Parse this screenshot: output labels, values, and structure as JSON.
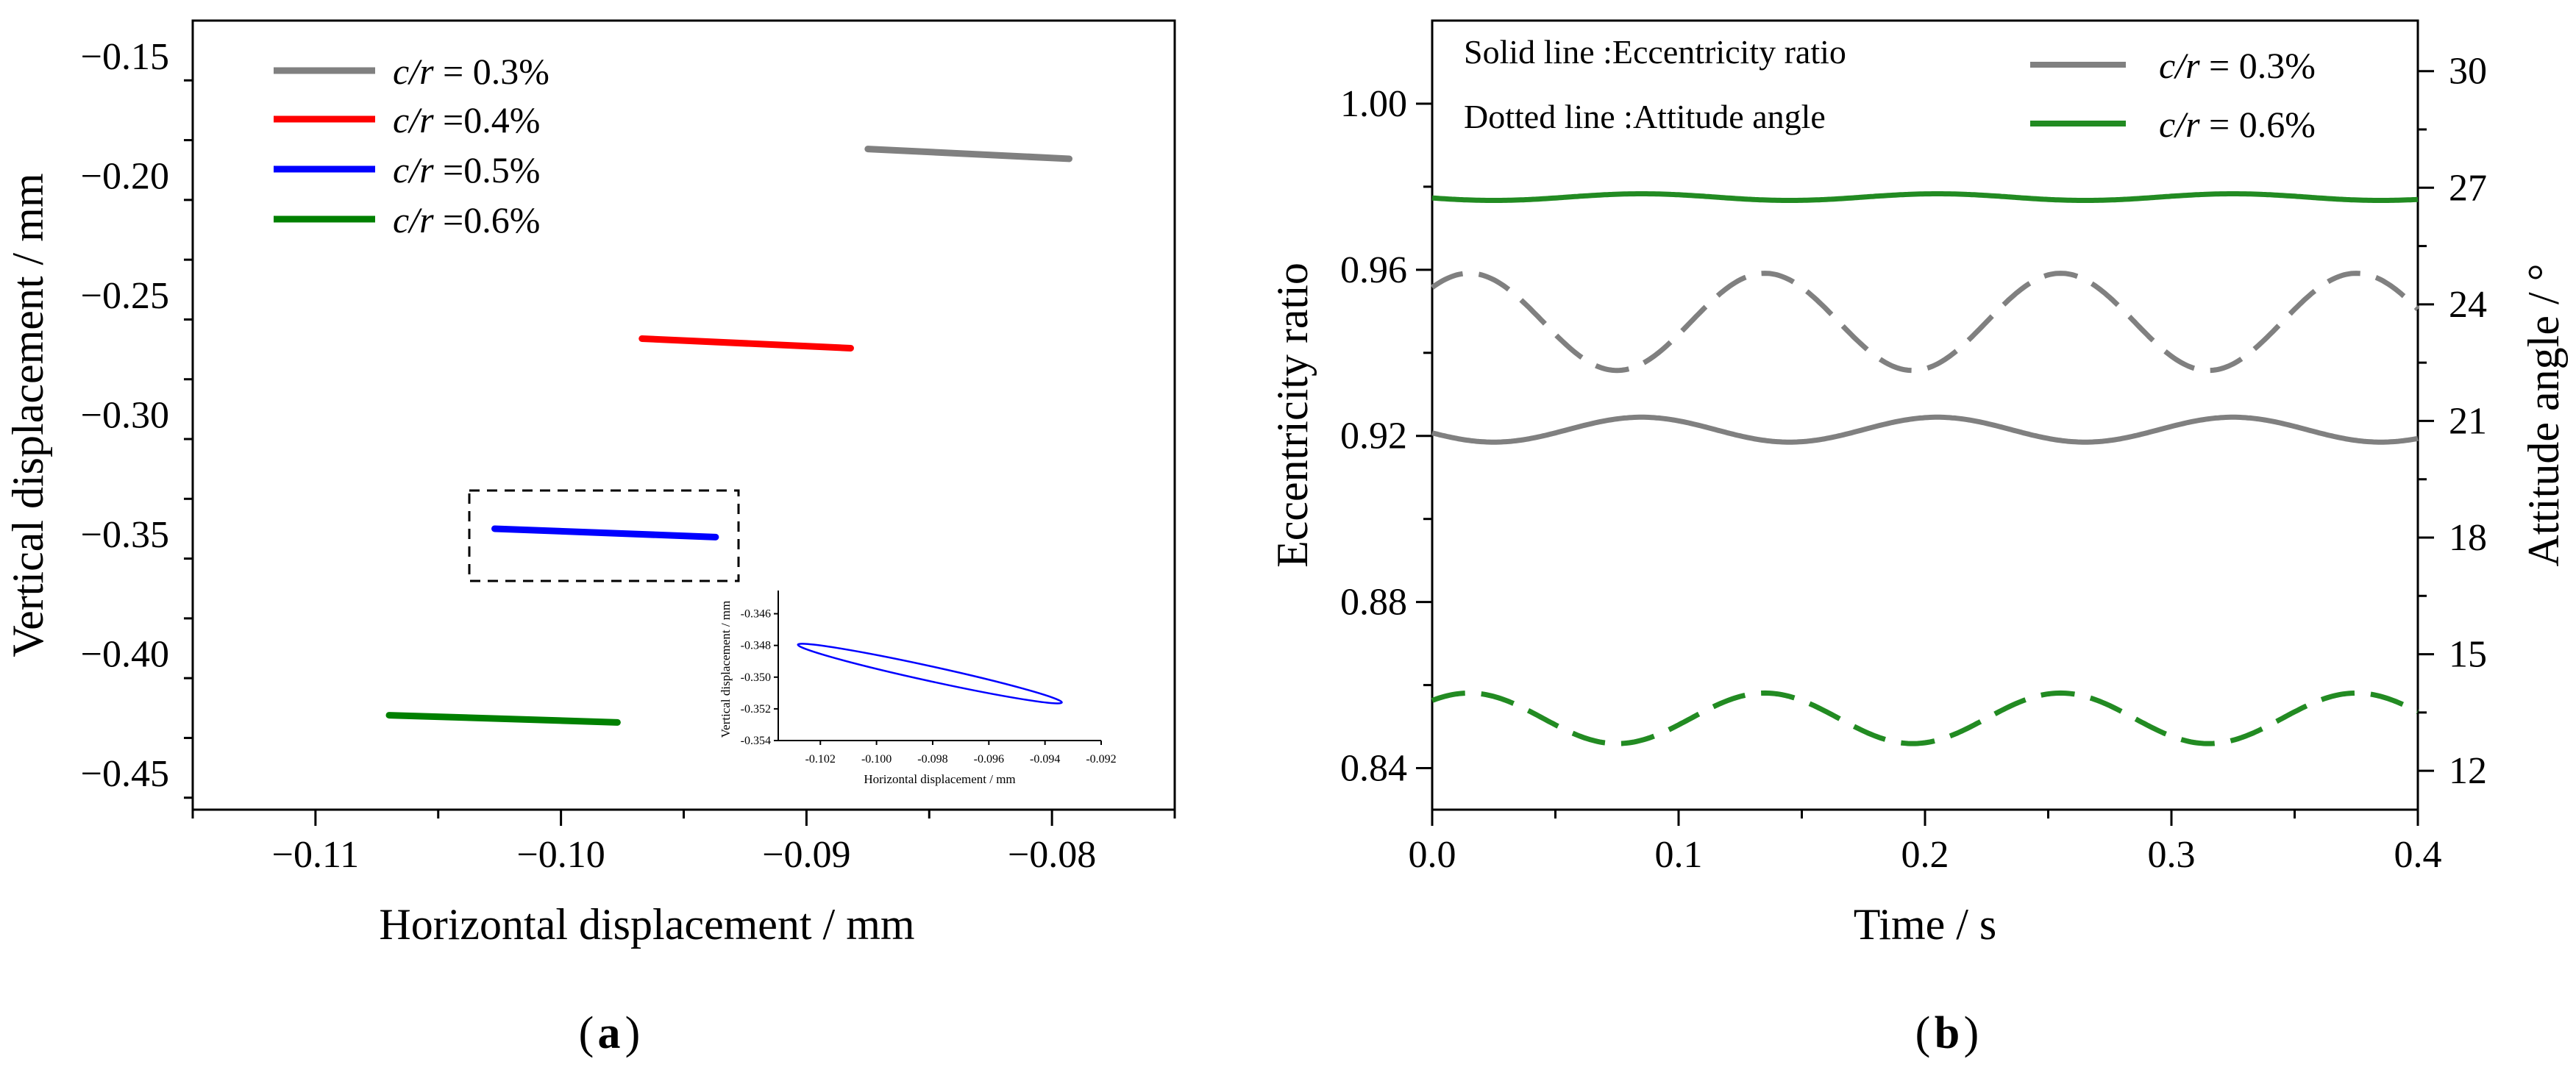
{
  "chart_data": [
    {
      "panel": "a",
      "panel_label": "a",
      "type": "line",
      "xlabel": "Horizontal displacement / mm",
      "ylabel": "Vertical displacement / mm",
      "xlim": [
        -0.115,
        -0.075
      ],
      "ylim": [
        -0.465,
        -0.135
      ],
      "xticks": [
        -0.11,
        -0.1,
        -0.09,
        -0.08
      ],
      "xtick_labels": [
        "−0.11",
        "−0.10",
        "−0.09",
        "−0.08"
      ],
      "yticks": [
        -0.15,
        -0.2,
        -0.25,
        -0.3,
        -0.35,
        -0.4,
        -0.45
      ],
      "ytick_labels": [
        "−0.15",
        "−0.20",
        "−0.25",
        "−0.30",
        "−0.35",
        "−0.40",
        "−0.45"
      ],
      "legend_position": "top-left",
      "series": [
        {
          "name": "c/r = 0.3%",
          "legend_var": "c/r",
          "legend_val": "= 0.3%",
          "color": "#808080",
          "points": [
            [
              -0.0875,
              -0.1887
            ],
            [
              -0.0793,
              -0.1928
            ]
          ]
        },
        {
          "name": "c/r =0.4%",
          "legend_var": "c/r",
          "legend_val": "=0.4%",
          "color": "#ff0000",
          "points": [
            [
              -0.0967,
              -0.268
            ],
            [
              -0.0882,
              -0.272
            ]
          ]
        },
        {
          "name": "c/r =0.5%",
          "legend_var": "c/r",
          "legend_val": "=0.5%",
          "color": "#0000ff",
          "points": [
            [
              -0.1027,
              -0.3475
            ],
            [
              -0.0937,
              -0.351
            ]
          ]
        },
        {
          "name": "c/r =0.6%",
          "legend_var": "c/r",
          "legend_val": "=0.6%",
          "color": "#008000",
          "points": [
            [
              -0.107,
              -0.4255
            ],
            [
              -0.0977,
              -0.4285
            ]
          ]
        }
      ],
      "inset": {
        "type": "line",
        "xlabel": "Horizontal displacement / mm",
        "ylabel": "Vertical displacement / mm",
        "xlim": [
          -0.1035,
          -0.092
        ],
        "ylim": [
          -0.354,
          -0.345
        ],
        "xticks": [
          -0.102,
          -0.1,
          -0.098,
          -0.096,
          -0.094,
          -0.092
        ],
        "xtick_labels": [
          "-0.102",
          "-0.100",
          "-0.098",
          "-0.096",
          "-0.094",
          "-0.092"
        ],
        "yticks": [
          -0.346,
          -0.348,
          -0.35,
          -0.352,
          -0.354
        ],
        "ytick_labels": [
          "-0.346",
          "-0.348",
          "-0.350",
          "-0.352",
          "-0.354"
        ],
        "series": [
          {
            "name": "c/r =0.5% orbit",
            "color": "#0000ff",
            "ellipse": {
              "p1": [
                -0.1028,
                -0.34795
              ],
              "p2": [
                -0.0934,
                -0.3516
              ],
              "minor_half_width": 0.00028
            }
          }
        ]
      }
    },
    {
      "panel": "b",
      "panel_label": "b",
      "type": "line",
      "xlabel": "Time / s",
      "ylabel": "Eccentricity ratio",
      "y2label": "Attitude angle / °",
      "xlim": [
        0,
        0.4
      ],
      "ylim": [
        0.83,
        1.02
      ],
      "y2lim": [
        11.0,
        31.3
      ],
      "xticks": [
        0,
        0.1,
        0.2,
        0.3,
        0.4
      ],
      "xtick_labels": [
        "0.0",
        "0.1",
        "0.2",
        "0.3",
        "0.4"
      ],
      "yticks": [
        0.84,
        0.88,
        0.92,
        0.96,
        1.0
      ],
      "ytick_labels": [
        "0.84",
        "0.88",
        "0.92",
        "0.96",
        "1.00"
      ],
      "y2ticks": [
        12,
        15,
        18,
        21,
        24,
        27,
        30
      ],
      "y2tick_labels": [
        "12",
        "15",
        "18",
        "21",
        "24",
        "27",
        "30"
      ],
      "annotations": [
        "Solid line :Eccentricity ratio",
        "Dotted line :Attitude angle"
      ],
      "legend_position": "top-right",
      "legend": [
        {
          "legend_var": "c/r",
          "legend_val": "= 0.3%",
          "color": "#808080"
        },
        {
          "legend_var": "c/r",
          "legend_val": "= 0.6%",
          "color": "#228b22"
        }
      ],
      "series": [
        {
          "name": "c/r = 0.3% eccentricity ratio",
          "axis": "left",
          "style": "solid",
          "color": "#808080",
          "model": {
            "mean": 0.9215,
            "amp": 0.003,
            "period": 0.12,
            "phase_t": 0.025,
            "sign": -1
          }
        },
        {
          "name": "c/r = 0.6% eccentricity ratio",
          "axis": "left",
          "style": "solid",
          "color": "#228b22",
          "model": {
            "mean": 0.9775,
            "amp": 0.0008,
            "period": 0.12,
            "phase_t": 0.025,
            "sign": -1
          }
        },
        {
          "name": "c/r = 0.3% attitude angle",
          "axis": "right",
          "style": "dashed",
          "color": "#808080",
          "model": {
            "mean": 23.55,
            "amp": 1.25,
            "period": 0.12,
            "phase_t": 0.015,
            "sign": 1
          }
        },
        {
          "name": "c/r = 0.6% attitude angle",
          "axis": "right",
          "style": "dashed",
          "color": "#228b22",
          "model": {
            "mean": 13.35,
            "amp": 0.65,
            "period": 0.12,
            "phase_t": 0.015,
            "sign": 1
          }
        }
      ]
    }
  ]
}
